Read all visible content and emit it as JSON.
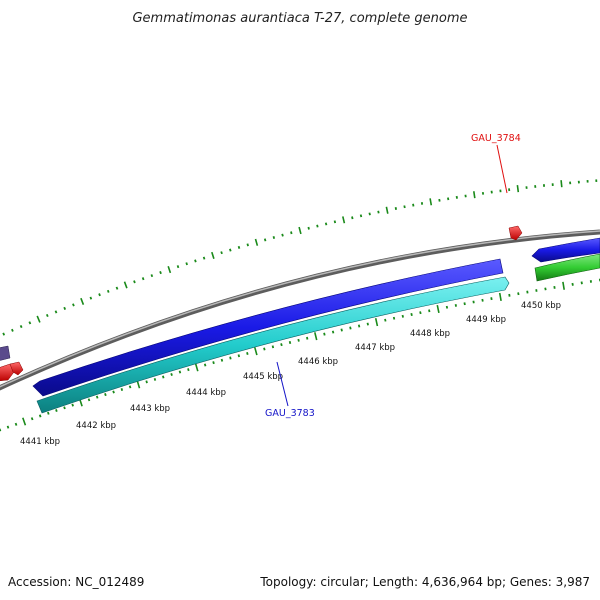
{
  "title": "Gemmatimonas aurantiaca T-27, complete genome",
  "footer": {
    "accession": "Accession: NC_012489",
    "summary": "Topology: circular; Length: 4,636,964 bp; Genes: 3,987"
  },
  "ticks": [
    "4441 kbp",
    "4442 kbp",
    "4443 kbp",
    "4444 kbp",
    "4445 kbp",
    "4446 kbp",
    "4447 kbp",
    "4448 kbp",
    "4449 kbp",
    "4450 kbp"
  ],
  "genes": [
    {
      "id": "GAU_3784",
      "label": "GAU_3784",
      "color": "#e01010",
      "strand": "+",
      "track": "outer"
    },
    {
      "id": "GAU_3783",
      "label": "GAU_3783",
      "color": "#1414c8",
      "strand": "-",
      "track": "inner"
    }
  ],
  "colors": {
    "backbone": "#8a8a8a",
    "cds_forward": "#1a1ae6",
    "cds_reverse": "#22cccc",
    "cds_other": "#33cc33",
    "marker": "#ee1111",
    "tick": "#1a8a1a"
  }
}
